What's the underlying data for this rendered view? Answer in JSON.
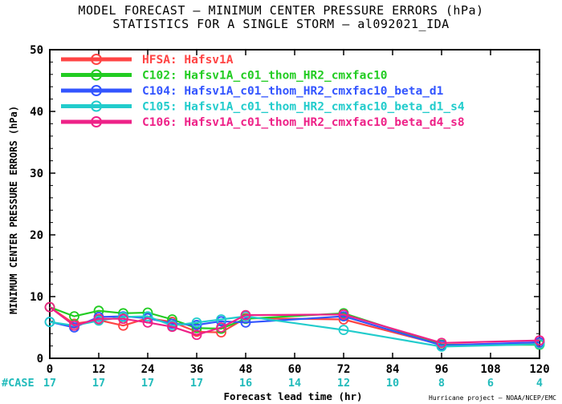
{
  "titles": {
    "line1": "MODEL FORECAST — MINIMUM CENTER PRESSURE ERRORS (hPa)",
    "line2": "STATISTICS FOR A SINGLE STORM — al092021_IDA"
  },
  "credit": "Hurricane project — NOAA/NCEP/EMC",
  "case_label": "#CASE",
  "cases": [
    {
      "x": 0,
      "n": "17"
    },
    {
      "x": 12,
      "n": "17"
    },
    {
      "x": 24,
      "n": "17"
    },
    {
      "x": 36,
      "n": "17"
    },
    {
      "x": 48,
      "n": "16"
    },
    {
      "x": 60,
      "n": "14"
    },
    {
      "x": 72,
      "n": "12"
    },
    {
      "x": 84,
      "n": "10"
    },
    {
      "x": 96,
      "n": "8"
    },
    {
      "x": 108,
      "n": "6"
    },
    {
      "x": 120,
      "n": "4"
    }
  ],
  "chart_data": {
    "type": "line",
    "title": "MODEL FORECAST — MINIMUM CENTER PRESSURE ERRORS (hPa)",
    "subtitle": "STATISTICS FOR A SINGLE STORM — al092021_IDA",
    "xlabel": "Forecast lead time (hr)",
    "ylabel": "MINIMUM CENTER PRESSURE ERRORS (hPa)",
    "xlim": [
      0,
      120
    ],
    "ylim": [
      0,
      50
    ],
    "xticks": [
      "0",
      "12",
      "24",
      "36",
      "48",
      "60",
      "72",
      "84",
      "96",
      "108",
      "120"
    ],
    "yticks": [
      "0",
      "10",
      "20",
      "30",
      "40",
      "50"
    ],
    "grid": false,
    "legend_position": "top-left",
    "series": [
      {
        "name": "HFSA: Hafsv1A",
        "color": "#ff4444",
        "x": [
          0,
          6,
          12,
          18,
          24,
          30,
          36,
          42,
          48,
          72,
          96,
          120
        ],
        "y": [
          8.3,
          5.6,
          6.2,
          5.3,
          6.5,
          5.9,
          4.3,
          4.2,
          6.5,
          6.3,
          2.2,
          2.5
        ]
      },
      {
        "name": "C102: Hafsv1A_c01_thom_HR2_cmxfac10",
        "color": "#22cc22",
        "x": [
          0,
          6,
          12,
          18,
          24,
          30,
          36,
          42,
          48,
          72,
          96,
          120
        ],
        "y": [
          8.3,
          6.8,
          7.7,
          7.3,
          7.4,
          6.3,
          4.9,
          4.8,
          6.4,
          7.3,
          2.2,
          2.2
        ]
      },
      {
        "name": "C104: Hafsv1A_c01_thom_HR2_cmxfac10_beta_d1",
        "color": "#3355ff",
        "x": [
          0,
          6,
          12,
          18,
          24,
          30,
          36,
          42,
          48,
          72,
          96,
          120
        ],
        "y": [
          5.9,
          5.0,
          6.7,
          6.8,
          6.5,
          5.6,
          5.4,
          6.0,
          5.8,
          6.8,
          2.1,
          2.6
        ]
      },
      {
        "name": "C105: Hafsv1A_c01_thom_HR2_cmxfac10_beta_d1_s4",
        "color": "#22cccc",
        "x": [
          0,
          6,
          12,
          18,
          24,
          30,
          36,
          42,
          48,
          72,
          96,
          120
        ],
        "y": [
          5.9,
          5.3,
          6.1,
          6.7,
          6.8,
          5.3,
          5.8,
          6.3,
          6.8,
          4.6,
          1.9,
          2.3
        ]
      },
      {
        "name": "C106: Hafsv1A_c01_thom_HR2_cmxfac10_beta_d4_s8",
        "color": "#ee2288",
        "x": [
          0,
          6,
          12,
          18,
          24,
          30,
          36,
          42,
          48,
          72,
          96,
          120
        ],
        "y": [
          8.3,
          5.3,
          6.4,
          6.4,
          5.8,
          5.1,
          3.8,
          5.0,
          7.0,
          7.1,
          2.5,
          2.9
        ]
      }
    ]
  }
}
